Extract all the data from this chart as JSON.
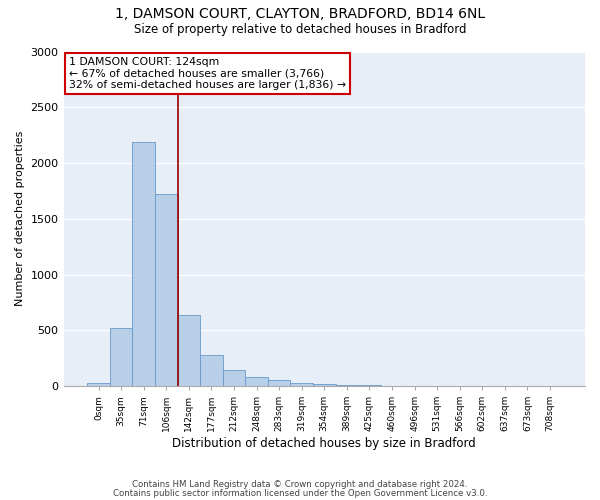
{
  "title1": "1, DAMSON COURT, CLAYTON, BRADFORD, BD14 6NL",
  "title2": "Size of property relative to detached houses in Bradford",
  "xlabel": "Distribution of detached houses by size in Bradford",
  "ylabel": "Number of detached properties",
  "bar_labels": [
    "0sqm",
    "35sqm",
    "71sqm",
    "106sqm",
    "142sqm",
    "177sqm",
    "212sqm",
    "248sqm",
    "283sqm",
    "319sqm",
    "354sqm",
    "389sqm",
    "425sqm",
    "460sqm",
    "496sqm",
    "531sqm",
    "566sqm",
    "602sqm",
    "637sqm",
    "673sqm",
    "708sqm"
  ],
  "bar_values": [
    30,
    520,
    2190,
    1720,
    640,
    280,
    140,
    80,
    50,
    30,
    15,
    10,
    5,
    3,
    2,
    1,
    1,
    0,
    0,
    0,
    0
  ],
  "bar_color": "#b8cfe8",
  "bar_edge_color": "#6699cc",
  "vline_x": 3.5,
  "vline_color": "#990000",
  "annotation_text": "1 DAMSON COURT: 124sqm\n← 67% of detached houses are smaller (3,766)\n32% of semi-detached houses are larger (1,836) →",
  "annotation_box_color": "#ffffff",
  "annotation_box_edge": "#cc0000",
  "ylim": [
    0,
    3000
  ],
  "yticks": [
    0,
    500,
    1000,
    1500,
    2000,
    2500,
    3000
  ],
  "bg_color": "#e8eef8",
  "footer1": "Contains HM Land Registry data © Crown copyright and database right 2024.",
  "footer2": "Contains public sector information licensed under the Open Government Licence v3.0."
}
